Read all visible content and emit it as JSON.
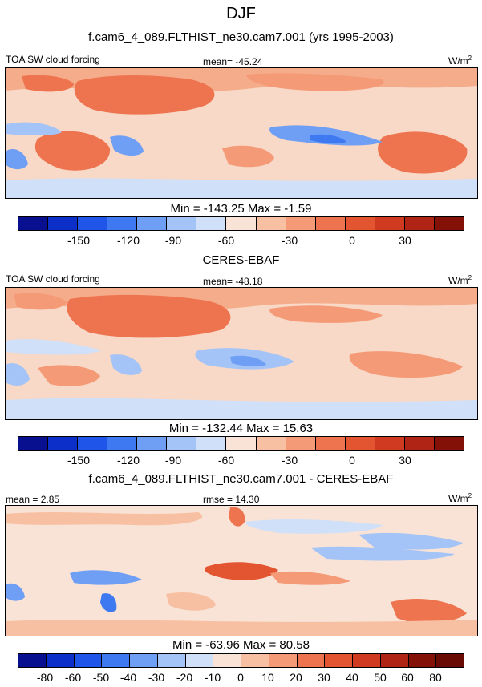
{
  "page": {
    "season": "DJF",
    "model_title": "f.cam6_4_089.FLTHIST_ne30.cam7.001 (yrs 1995-2003)",
    "obs_title": "CERES-EBAF",
    "diff_title": "f.cam6_4_089.FLTHIST_ne30.cam7.001 - CERES-EBAF"
  },
  "panels": [
    {
      "variable": "TOA SW cloud forcing",
      "stat_label": "mean= -45.24",
      "units": "W/m",
      "units_sup": "2",
      "minmax": "Min = -143.25 Max =  -1.59",
      "colorbar_ticks": [
        "-150",
        "-120",
        "-90",
        "-60",
        "-30",
        "0",
        "30"
      ]
    },
    {
      "variable": "TOA SW cloud forcing",
      "stat_label": "mean= -48.18",
      "units": "W/m",
      "units_sup": "2",
      "minmax": "Min = -132.44 Max =  15.63",
      "colorbar_ticks": [
        "-150",
        "-120",
        "-90",
        "-60",
        "-30",
        "0",
        "30"
      ]
    },
    {
      "variable": "mean =   2.85",
      "stat_label": "rmse =  14.30",
      "units": "W/m",
      "units_sup": "2",
      "minmax": "Min = -63.96 Max =  80.58",
      "colorbar_ticks": [
        "-80",
        "-60",
        "-50",
        "-40",
        "-30",
        "-20",
        "-10",
        "0",
        "10",
        "20",
        "30",
        "40",
        "50",
        "60",
        "80"
      ]
    }
  ],
  "chart_data": [
    {
      "type": "heatmap",
      "title": "f.cam6_4_089.FLTHIST_ne30.cam7.001 (yrs 1995-2003)",
      "variable": "TOA SW cloud forcing",
      "units": "W/m2",
      "mean": -45.24,
      "min": -143.25,
      "max": -1.59,
      "colorbar_levels": [
        -180,
        -165,
        -150,
        -135,
        -120,
        -105,
        -90,
        -75,
        -60,
        -45,
        -30,
        -15,
        0,
        15,
        30,
        45,
        60
      ]
    },
    {
      "type": "heatmap",
      "title": "CERES-EBAF",
      "variable": "TOA SW cloud forcing",
      "units": "W/m2",
      "mean": -48.18,
      "min": -132.44,
      "max": 15.63,
      "colorbar_levels": [
        -180,
        -165,
        -150,
        -135,
        -120,
        -105,
        -90,
        -75,
        -60,
        -45,
        -30,
        -15,
        0,
        15,
        30,
        45,
        60
      ]
    },
    {
      "type": "heatmap",
      "title": "f.cam6_4_089.FLTHIST_ne30.cam7.001 - CERES-EBAF",
      "units": "W/m2",
      "mean": 2.85,
      "rmse": 14.3,
      "min": -63.96,
      "max": 80.58,
      "colorbar_levels": [
        -80,
        -60,
        -50,
        -40,
        -30,
        -20,
        -10,
        0,
        10,
        20,
        30,
        40,
        50,
        60,
        80
      ]
    }
  ],
  "colors": {
    "abs_scale": [
      "#08108f",
      "#0b2fc8",
      "#1f55e8",
      "#3f79f2",
      "#6f9ff5",
      "#a4c4f7",
      "#cfe0f8",
      "#f8e3d6",
      "#f8c0a2",
      "#f59a76",
      "#ee7450",
      "#e35431",
      "#cf3a20",
      "#b02416",
      "#841108"
    ],
    "diff_scale": [
      "#08108f",
      "#0b2fc8",
      "#1f55e8",
      "#3f79f2",
      "#6f9ff5",
      "#a4c4f7",
      "#cfe0f8",
      "#f8e3d6",
      "#f8c0a2",
      "#f59a76",
      "#ee7450",
      "#e35431",
      "#cf3a20",
      "#b02416",
      "#841108",
      "#6a0a05"
    ]
  }
}
